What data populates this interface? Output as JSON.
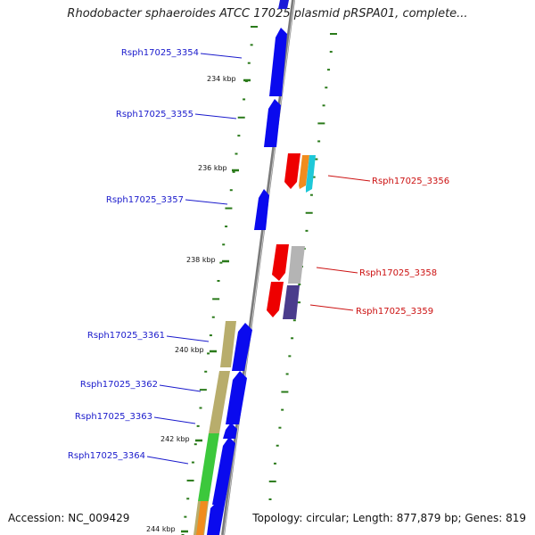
{
  "title": "Rhodobacter sphaeroides ATCC 17025 plasmid pRSPA01, complete...",
  "accession": {
    "label": "Accession:",
    "value": "NC_009429"
  },
  "topology_text": "Topology: circular; Length: 877,879 bp; Genes: 819",
  "colors": {
    "forward_gene": "#0a0aee",
    "reverse_gene": "#ee0000",
    "forward_label": "#1a1acc",
    "reverse_label": "#cc1111",
    "backbone": "#888888",
    "ticks": "#2a7a1a"
  },
  "kbp_labels": [
    "234 kbp",
    "236 kbp",
    "238 kbp",
    "240 kbp",
    "242 kbp",
    "244 kbp"
  ],
  "genes_forward": [
    {
      "name": "Rsph17025_3354"
    },
    {
      "name": "Rsph17025_3355"
    },
    {
      "name": "Rsph17025_3357"
    },
    {
      "name": "Rsph17025_3361"
    },
    {
      "name": "Rsph17025_3362"
    },
    {
      "name": "Rsph17025_3363"
    },
    {
      "name": "Rsph17025_3364"
    }
  ],
  "genes_reverse": [
    {
      "name": "Rsph17025_3356"
    },
    {
      "name": "Rsph17025_3358"
    },
    {
      "name": "Rsph17025_3359"
    }
  ]
}
